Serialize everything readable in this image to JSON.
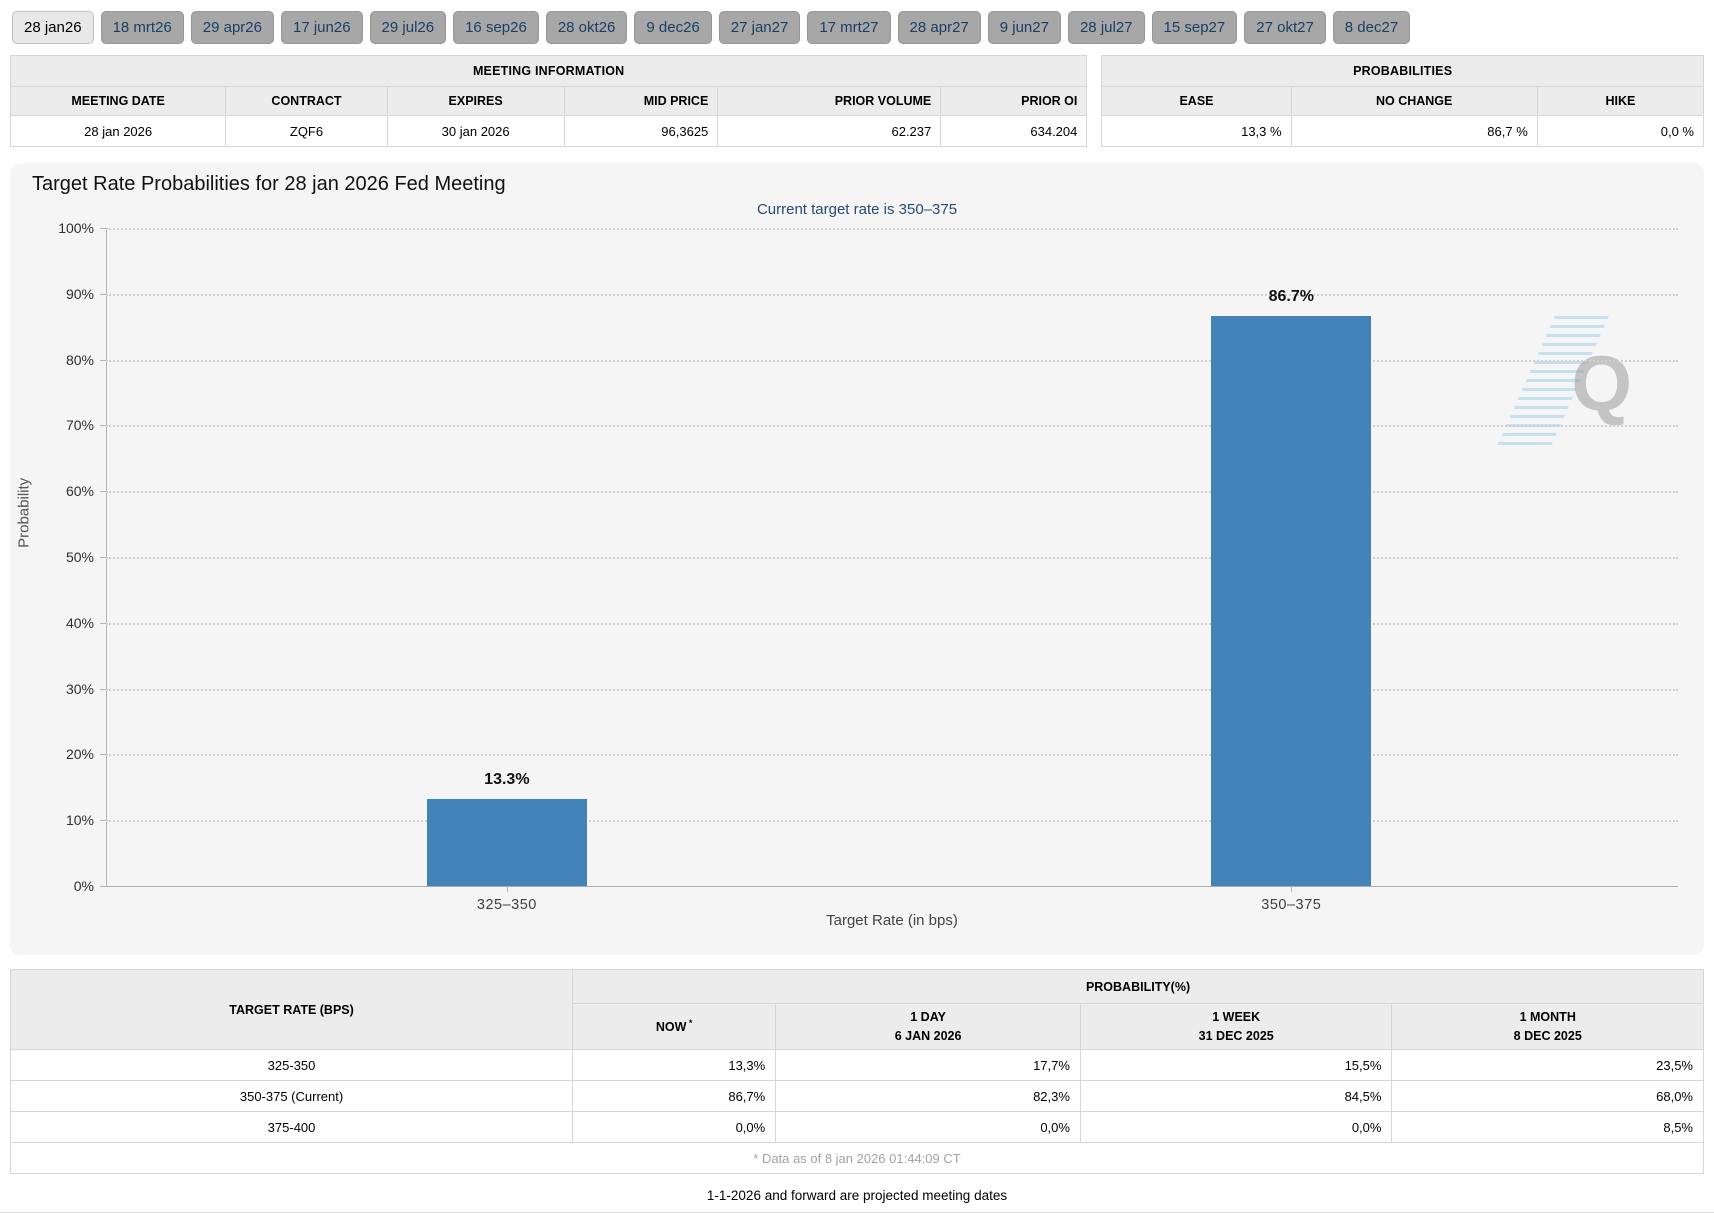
{
  "meeting_tabs": {
    "active": "28 jan26",
    "items": [
      "28 jan26",
      "18 mrt26",
      "29 apr26",
      "17 jun26",
      "29 jul26",
      "16 sep26",
      "28 okt26",
      "9 dec26",
      "27 jan27",
      "17 mrt27",
      "28 apr27",
      "9 jun27",
      "28 jul27",
      "15 sep27",
      "27 okt27",
      "8 dec27"
    ]
  },
  "meeting_info": {
    "title": "MEETING INFORMATION",
    "columns": [
      "MEETING DATE",
      "CONTRACT",
      "EXPIRES",
      "MID PRICE",
      "PRIOR VOLUME",
      "PRIOR OI"
    ],
    "values": [
      "28 jan 2026",
      "ZQF6",
      "30 jan 2026",
      "96,3625",
      "62.237",
      "634.204"
    ]
  },
  "probabilities_panel": {
    "title": "PROBABILITIES",
    "columns": [
      "EASE",
      "NO CHANGE",
      "HIKE"
    ],
    "values": [
      "13,3 %",
      "86,7 %",
      "0,0 %"
    ]
  },
  "chart": {
    "title": "Target Rate Probabilities for 28 jan 2026 Fed Meeting",
    "subtitle": "Current target rate is 350–375",
    "watermark_letter": "Q"
  },
  "chart_data": {
    "type": "bar",
    "categories": [
      "325–350",
      "350–375"
    ],
    "values": [
      13.3,
      86.7
    ],
    "value_labels": [
      "13.3%",
      "86.7%"
    ],
    "title": "Target Rate Probabilities for 28 jan 2026 Fed Meeting",
    "subtitle": "Current target rate is 350–375",
    "xlabel": "Target Rate (in bps)",
    "ylabel": "Probability",
    "ylim": [
      0,
      100
    ],
    "ytick_step": 10,
    "ytick_suffix": "%",
    "grid": "dotted-horizontal",
    "legend": "none",
    "bar_color": "#4383b7"
  },
  "history_table": {
    "rate_header": "TARGET RATE (BPS)",
    "group_header": "PROBABILITY(%)",
    "sub_headers": [
      {
        "line1": "NOW",
        "sup": "*",
        "line2": ""
      },
      {
        "line1": "1 DAY",
        "line2": "6 JAN 2026"
      },
      {
        "line1": "1 WEEK",
        "line2": "31 DEC 2025"
      },
      {
        "line1": "1 MONTH",
        "line2": "8 DEC 2025"
      }
    ],
    "rows": [
      [
        "325-350",
        "13,3%",
        "17,7%",
        "15,5%",
        "23,5%"
      ],
      [
        "350-375 (Current)",
        "86,7%",
        "82,3%",
        "84,5%",
        "68,0%"
      ],
      [
        "375-400",
        "0,0%",
        "0,0%",
        "0,0%",
        "8,5%"
      ]
    ],
    "footnote": "* Data as of 8 jan 2026 01:44:09 CT"
  },
  "footer_note": "1-1-2026 and forward are projected meeting dates",
  "colors": {
    "bar": "#4383b7",
    "now_column_highlight": "#f8f8da",
    "subtitle_text": "#274a73",
    "tab_inactive_bg": "#a7a7a7",
    "tab_active_bg": "#e8e8e8",
    "panel_bg": "#f5f5f5"
  }
}
